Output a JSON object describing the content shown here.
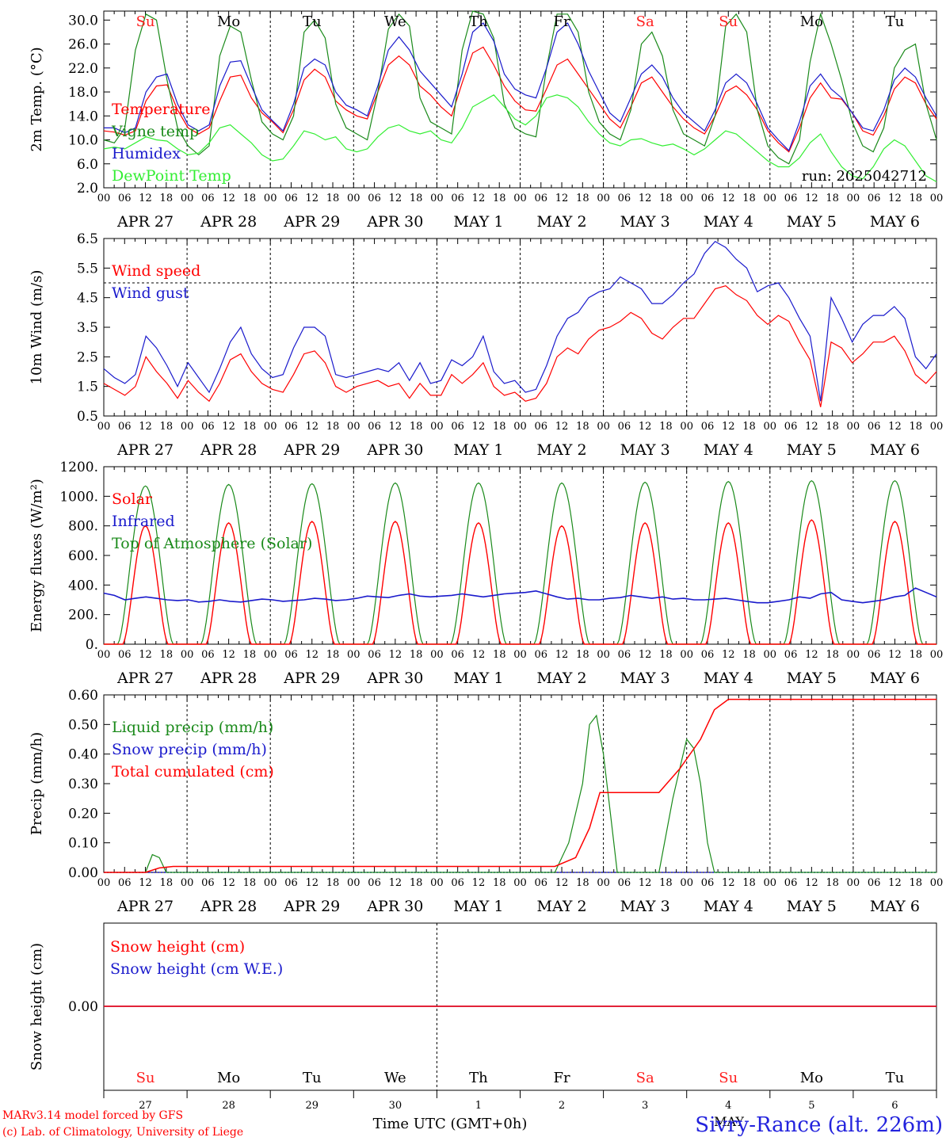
{
  "footer": {
    "credit_line1": "MARv3.14 model forced by GFS",
    "credit_line2": "(c) Lab. of Climatology, University of Liege",
    "xlabel": "Time UTC (GMT+0h)",
    "location": "Sivry-Rance (alt. 226m)",
    "month_label": "MAY"
  },
  "axes": {
    "hour_ticks": [
      "00",
      "06",
      "12",
      "18"
    ],
    "day_labels": [
      "APR 27",
      "APR 28",
      "APR 29",
      "APR 30",
      "MAY  1",
      "MAY  2",
      "MAY  3",
      "MAY  4",
      "MAY  5",
      "MAY  6"
    ],
    "weekdays": [
      "Su",
      "Mo",
      "Tu",
      "We",
      "Th",
      "Fr",
      "Sa",
      "Su",
      "Mo",
      "Tu"
    ],
    "day_numbers": [
      "27",
      "28",
      "29",
      "30",
      "1",
      "2",
      "3",
      "4",
      "5",
      "6"
    ],
    "weekend_color": "#ff2020",
    "weekday_color": "#000000"
  },
  "colors": {
    "red": "#ff0000",
    "green": "#1a8a1a",
    "blue": "#1a1acc",
    "lime": "#33ee33"
  },
  "chart_data": [
    {
      "type": "line",
      "ylabel": "2m Temp. (°C)",
      "ylim": [
        2,
        31.5
      ],
      "yticks": [
        "2.0",
        "6.0",
        "10.0",
        "14.0",
        "18.0",
        "22.0",
        "26.0",
        "30.0"
      ],
      "run_label": "run: 2025042712",
      "legend": [
        "Temperature",
        "Vigne temp",
        "Humidex",
        "DewPoint Temp"
      ],
      "series": [
        {
          "name": "Temperature",
          "color": "red",
          "values": [
            11.5,
            11.3,
            10.8,
            11.5,
            16.5,
            19,
            19.2,
            15,
            12,
            11,
            12,
            16.5,
            20.5,
            20.8,
            17,
            14.5,
            13,
            11.2,
            15,
            20,
            21.8,
            20.5,
            16.5,
            15,
            14,
            13.5,
            18,
            22.5,
            24,
            22.5,
            19,
            17.5,
            15.5,
            14,
            19.5,
            24.5,
            25.5,
            22.5,
            19,
            16.5,
            15,
            14.8,
            18.5,
            22.5,
            23.5,
            21,
            18.5,
            16,
            13.5,
            12,
            15.5,
            19.5,
            20.5,
            18,
            15.5,
            13.5,
            12,
            11,
            14,
            18,
            19,
            17.5,
            15,
            11.5,
            9.5,
            8,
            12,
            17,
            19.5,
            17,
            16.8,
            14.5,
            11.5,
            10.8,
            14,
            18.5,
            20.5,
            19.5,
            16,
            13.5
          ]
        },
        {
          "name": "Vigne temp",
          "color": "green",
          "values": [
            10,
            9.5,
            12,
            25,
            31,
            30,
            20,
            12,
            9,
            7.5,
            9,
            24,
            29,
            28,
            20,
            13,
            11,
            10,
            14,
            28,
            30,
            27,
            16,
            12,
            11,
            10,
            18,
            28.5,
            31,
            29,
            17,
            13,
            12,
            11,
            25,
            31.5,
            31,
            27,
            16,
            12,
            11,
            10.5,
            22,
            31,
            31,
            28,
            18,
            13,
            11,
            10,
            15,
            26,
            28,
            24,
            15,
            11,
            10,
            9,
            14,
            29,
            31,
            28,
            15,
            9,
            7,
            6,
            10,
            23,
            31,
            26,
            20,
            13,
            9,
            8,
            12,
            22,
            25,
            26,
            16,
            10
          ]
        },
        {
          "name": "Humidex",
          "color": "blue",
          "values": [
            12,
            12,
            11.2,
            12,
            18,
            20.5,
            21,
            16,
            12.5,
            11.5,
            12.5,
            19,
            23,
            23.2,
            19,
            15,
            13.2,
            11.5,
            16,
            22,
            23.5,
            22.5,
            18,
            15.8,
            15,
            14,
            19,
            25,
            27.2,
            25,
            21.5,
            19.5,
            17.5,
            15.5,
            21,
            28,
            29.5,
            26.5,
            21,
            18.5,
            17.5,
            17,
            22,
            28,
            29.5,
            26,
            21.5,
            18,
            14.5,
            13,
            17,
            21,
            22.5,
            20.5,
            17,
            14.5,
            13,
            11.5,
            15,
            19.5,
            21,
            19.5,
            16,
            12,
            10,
            8.2,
            13,
            19,
            21,
            18.5,
            17,
            14.5,
            12,
            11.5,
            15,
            20,
            22,
            20.5,
            17,
            14
          ]
        },
        {
          "name": "DewPoint Temp",
          "color": "lime",
          "values": [
            8.5,
            8.8,
            8.5,
            9.5,
            10.5,
            10,
            9.8,
            8.5,
            7.5,
            7.8,
            9.5,
            12,
            12.5,
            11,
            9.5,
            7.5,
            6.5,
            6.8,
            9,
            11.5,
            11,
            10,
            10.5,
            8.5,
            8,
            8.5,
            10.5,
            12,
            12.5,
            11.5,
            11,
            11.5,
            10,
            9.5,
            12,
            15.5,
            16.5,
            17.5,
            15.5,
            13.5,
            12.5,
            14,
            17,
            17.5,
            17,
            15.5,
            13,
            11,
            9.5,
            9,
            10,
            10.2,
            9.5,
            9,
            9.3,
            8.5,
            7.5,
            8.5,
            10,
            11.5,
            11,
            9.5,
            8,
            6.5,
            5.5,
            5.5,
            7,
            9.5,
            11,
            8,
            5.5,
            4,
            3.5,
            5.5,
            8.5,
            10,
            9,
            6.5,
            4,
            3
          ]
        }
      ]
    },
    {
      "type": "line",
      "ylabel": "10m Wind (m/s)",
      "ylim": [
        0.5,
        6.5
      ],
      "yticks": [
        "0.5",
        "1.5",
        "2.5",
        "3.5",
        "4.5",
        "5.5",
        "6.5"
      ],
      "dashed_ref": 5.0,
      "legend": [
        "Wind speed",
        "Wind gust"
      ],
      "series": [
        {
          "name": "Wind speed",
          "color": "red",
          "values": [
            1.6,
            1.4,
            1.2,
            1.5,
            2.5,
            2.0,
            1.6,
            1.1,
            1.7,
            1.3,
            1.0,
            1.6,
            2.4,
            2.6,
            2.0,
            1.6,
            1.4,
            1.3,
            1.9,
            2.6,
            2.7,
            2.3,
            1.5,
            1.3,
            1.5,
            1.6,
            1.7,
            1.5,
            1.6,
            1.1,
            1.6,
            1.2,
            1.2,
            1.9,
            1.6,
            1.9,
            2.3,
            1.5,
            1.2,
            1.3,
            1.0,
            1.1,
            1.6,
            2.5,
            2.8,
            2.6,
            3.1,
            3.4,
            3.5,
            3.7,
            4.0,
            3.8,
            3.3,
            3.1,
            3.5,
            3.8,
            3.8,
            4.3,
            4.8,
            4.9,
            4.6,
            4.4,
            3.9,
            3.6,
            3.9,
            3.7,
            3.0,
            2.4,
            0.8,
            3.0,
            2.8,
            2.3,
            2.6,
            3.0,
            3.0,
            3.2,
            2.7,
            1.9,
            1.6,
            2.0
          ]
        },
        {
          "name": "Wind gust",
          "color": "blue",
          "values": [
            2.1,
            1.8,
            1.6,
            1.9,
            3.2,
            2.8,
            2.2,
            1.5,
            2.3,
            1.8,
            1.3,
            2.1,
            3.0,
            3.5,
            2.6,
            2.1,
            1.8,
            1.9,
            2.8,
            3.5,
            3.5,
            3.2,
            1.9,
            1.8,
            1.9,
            2.0,
            2.1,
            2.0,
            2.3,
            1.7,
            2.3,
            1.6,
            1.7,
            2.4,
            2.2,
            2.5,
            3.2,
            2.0,
            1.6,
            1.7,
            1.3,
            1.4,
            2.2,
            3.2,
            3.8,
            4.0,
            4.5,
            4.7,
            4.8,
            5.2,
            5.0,
            4.8,
            4.3,
            4.3,
            4.6,
            5.0,
            5.3,
            6.0,
            6.4,
            6.2,
            5.8,
            5.5,
            4.7,
            4.9,
            5.0,
            4.5,
            3.8,
            3.2,
            1.0,
            4.5,
            3.8,
            3.0,
            3.6,
            3.9,
            3.9,
            4.2,
            3.8,
            2.5,
            2.1,
            2.6
          ]
        }
      ]
    },
    {
      "type": "line",
      "ylabel": "Energy fluxes (W/m²)",
      "ylim": [
        0,
        1200
      ],
      "yticks": [
        "0.",
        "200.",
        "400.",
        "600.",
        "800.",
        "1000.",
        "1200."
      ],
      "legend": [
        "Solar",
        "Infrared",
        "Top of Atmosphere (Solar)"
      ],
      "series": [
        {
          "name": "Solar",
          "color": "red",
          "peak": 820,
          "peaks": [
            800,
            820,
            830,
            830,
            820,
            800,
            820,
            820,
            840,
            830
          ]
        },
        {
          "name": "Infrared",
          "color": "blue",
          "values": [
            345,
            330,
            300,
            310,
            320,
            310,
            300,
            295,
            300,
            285,
            290,
            300,
            290,
            285,
            295,
            305,
            300,
            290,
            295,
            300,
            310,
            305,
            295,
            300,
            310,
            325,
            320,
            315,
            330,
            340,
            325,
            320,
            325,
            330,
            340,
            330,
            320,
            330,
            340,
            345,
            350,
            360,
            340,
            320,
            305,
            310,
            300,
            300,
            310,
            315,
            330,
            320,
            310,
            320,
            305,
            310,
            300,
            300,
            305,
            310,
            300,
            290,
            280,
            280,
            290,
            300,
            320,
            310,
            340,
            350,
            300,
            290,
            280,
            290,
            300,
            320,
            330,
            380,
            350,
            320
          ]
        },
        {
          "name": "Top of Atmosphere (Solar)",
          "color": "green",
          "peak": 1080,
          "peaks": [
            1070,
            1080,
            1085,
            1090,
            1090,
            1090,
            1095,
            1100,
            1105,
            1105
          ]
        }
      ]
    },
    {
      "type": "line",
      "ylabel": "Precip (mm/h)",
      "ylim": [
        0,
        0.6
      ],
      "yticks": [
        "0.00",
        "0.10",
        "0.20",
        "0.30",
        "0.40",
        "0.50",
        "0.60"
      ],
      "legend": [
        "Liquid precip (mm/h)",
        "Snow precip (mm/h)",
        "Total cumulated (cm)"
      ],
      "series": [
        {
          "name": "Liquid precip (mm/h)",
          "color": "green",
          "events": [
            [
              12,
              0.0
            ],
            [
              14,
              0.06
            ],
            [
              16,
              0.05
            ],
            [
              18,
              0.0
            ],
            [
              130,
              0.0
            ],
            [
              134,
              0.1
            ],
            [
              138,
              0.3
            ],
            [
              140,
              0.5
            ],
            [
              142,
              0.53
            ],
            [
              144,
              0.4
            ],
            [
              146,
              0.2
            ],
            [
              148,
              0.0
            ],
            [
              160,
              0.0
            ],
            [
              164,
              0.25
            ],
            [
              166,
              0.35
            ],
            [
              168,
              0.45
            ],
            [
              170,
              0.42
            ],
            [
              172,
              0.3
            ],
            [
              174,
              0.1
            ],
            [
              176,
              0.0
            ]
          ]
        },
        {
          "name": "Snow precip (mm/h)",
          "color": "blue",
          "values": []
        },
        {
          "name": "Total cumulated (cm)",
          "color": "red",
          "values": [
            [
              0,
              0.0
            ],
            [
              12,
              0.0
            ],
            [
              16,
              0.015
            ],
            [
              20,
              0.02
            ],
            [
              130,
              0.02
            ],
            [
              136,
              0.05
            ],
            [
              140,
              0.15
            ],
            [
              143,
              0.27
            ],
            [
              160,
              0.27
            ],
            [
              166,
              0.35
            ],
            [
              172,
              0.45
            ],
            [
              176,
              0.55
            ],
            [
              180,
              0.585
            ],
            [
              240,
              0.585
            ]
          ]
        }
      ]
    },
    {
      "type": "line",
      "ylabel": "Snow height (cm)",
      "ytick": "0.00",
      "legend": [
        "Snow height (cm)",
        "Snow height (cm W.E.)"
      ],
      "series": [
        {
          "name": "Snow height (cm)",
          "color": "red",
          "values": [
            0,
            0
          ]
        },
        {
          "name": "Snow height (cm W.E.)",
          "color": "blue",
          "values": [
            0,
            0
          ]
        }
      ]
    }
  ]
}
